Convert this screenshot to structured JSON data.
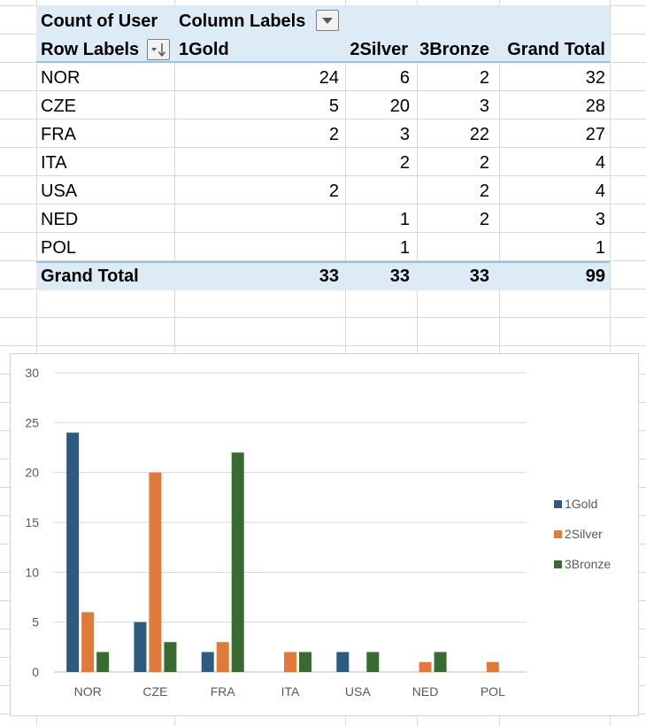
{
  "pivot": {
    "header": {
      "value_field": "Count of User",
      "column_labels": "Column Labels",
      "row_labels": "Row Labels",
      "columns": [
        "1Gold",
        "2Silver",
        "3Bronze",
        "Grand Total"
      ]
    },
    "rows": [
      {
        "label": "NOR",
        "values": [
          "24",
          "6",
          "2",
          "32"
        ]
      },
      {
        "label": "CZE",
        "values": [
          "5",
          "20",
          "3",
          "28"
        ]
      },
      {
        "label": "FRA",
        "values": [
          "2",
          "3",
          "22",
          "27"
        ]
      },
      {
        "label": "ITA",
        "values": [
          "",
          "2",
          "2",
          "4"
        ]
      },
      {
        "label": "USA",
        "values": [
          "2",
          "",
          "2",
          "4"
        ]
      },
      {
        "label": "NED",
        "values": [
          "",
          "1",
          "2",
          "3"
        ]
      },
      {
        "label": "POL",
        "values": [
          "",
          "1",
          "",
          "1"
        ]
      }
    ],
    "grand_total": {
      "label": "Grand Total",
      "values": [
        "33",
        "33",
        "33",
        "99"
      ]
    }
  },
  "colors": {
    "gold": "#2e5a7f",
    "silver": "#e07a3a",
    "bronze": "#386b2f",
    "header_band": "#ddebf7"
  },
  "chart_data": {
    "type": "bar",
    "categories": [
      "NOR",
      "CZE",
      "FRA",
      "ITA",
      "USA",
      "NED",
      "POL"
    ],
    "series": [
      {
        "name": "1Gold",
        "values": [
          24,
          5,
          2,
          null,
          2,
          null,
          null
        ]
      },
      {
        "name": "2Silver",
        "values": [
          6,
          20,
          3,
          2,
          null,
          1,
          1
        ]
      },
      {
        "name": "3Bronze",
        "values": [
          2,
          3,
          22,
          2,
          2,
          2,
          null
        ]
      }
    ],
    "ylim": [
      0,
      30
    ],
    "yticks": [
      "0",
      "5",
      "10",
      "15",
      "20",
      "25",
      "30"
    ],
    "legend": "right",
    "grid": true,
    "title": "",
    "xlabel": "",
    "ylabel": ""
  }
}
